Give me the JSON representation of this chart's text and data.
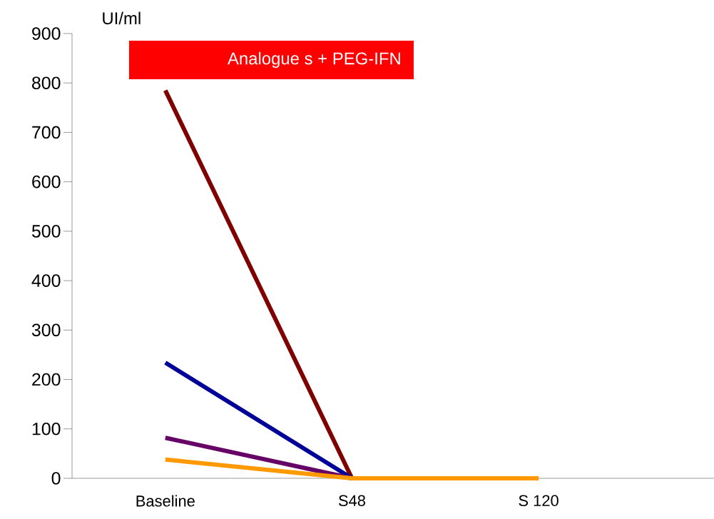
{
  "chart_data": {
    "type": "line",
    "ylabel": "UI/ml",
    "categories": [
      "Baseline",
      "S48",
      "S 120"
    ],
    "series": [
      {
        "color": "#7f0000",
        "values": [
          785,
          0,
          null
        ]
      },
      {
        "color": "#000099",
        "values": [
          234,
          0,
          null
        ]
      },
      {
        "color": "#660066",
        "values": [
          82,
          0,
          null
        ]
      },
      {
        "color": "#ff9900",
        "values": [
          38,
          0,
          0
        ]
      }
    ],
    "ylim": [
      0,
      900
    ],
    "yticks": [
      0,
      100,
      200,
      300,
      400,
      500,
      600,
      700,
      800,
      900
    ],
    "annotations": [
      "Analogue s + PEG-IFN"
    ],
    "grid": false,
    "marker": "none",
    "line_style": "solid"
  }
}
